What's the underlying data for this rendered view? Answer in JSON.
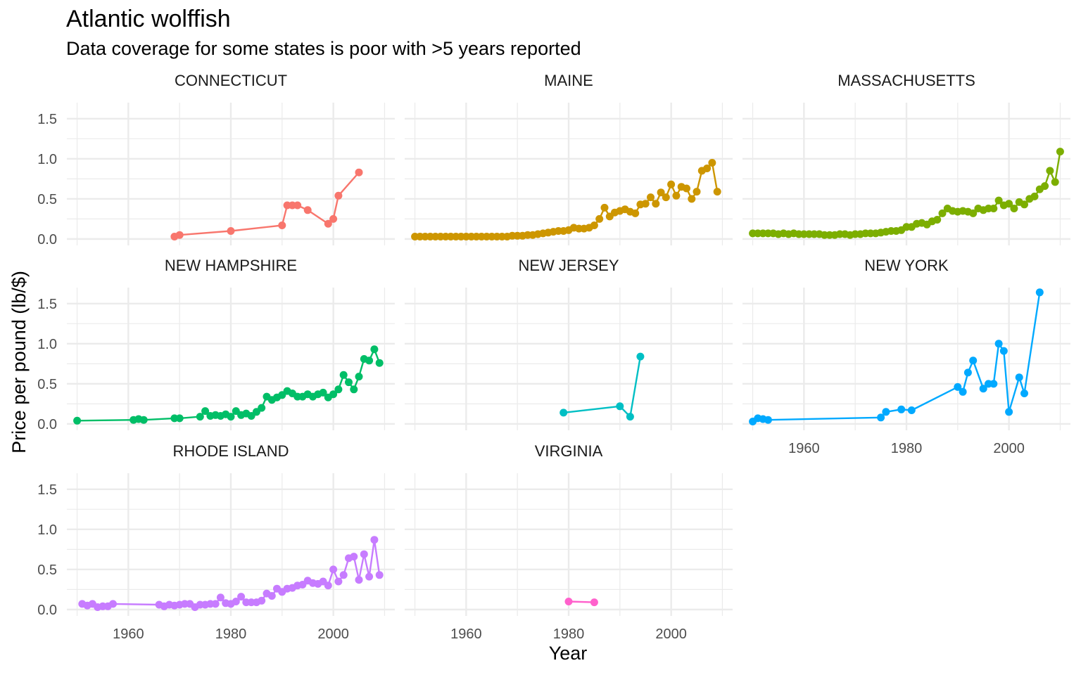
{
  "chart_data": {
    "type": "line",
    "title": "Atlantic wolffish",
    "subtitle": "Data coverage for some states is poor with >5 years reported",
    "xlabel": "Year",
    "ylabel": "Price per pound (lb/$)",
    "xlim": [
      1948,
      2012
    ],
    "ylim": [
      -0.08,
      1.7
    ],
    "x_ticks": [
      1960,
      1980,
      2000
    ],
    "y_ticks": [
      0.0,
      0.5,
      1.0,
      1.5
    ],
    "x_tick_labels": [
      "1960",
      "1980",
      "2000"
    ],
    "y_tick_labels": [
      "0.0",
      "0.5",
      "1.0",
      "1.5"
    ],
    "grid": true,
    "facet_layout": "3 columns x 3 rows, shared axes",
    "facets": [
      {
        "name": "CONNECTICUT",
        "color": "#F8766D",
        "x": [
          1969,
          1970,
          1980,
          1990,
          1991,
          1992,
          1993,
          1995,
          1999,
          2000,
          2001,
          2005
        ],
        "y": [
          0.03,
          0.05,
          0.1,
          0.17,
          0.42,
          0.42,
          0.42,
          0.36,
          0.19,
          0.25,
          0.54,
          0.83
        ]
      },
      {
        "name": "MAINE",
        "color": "#CD9600",
        "x": [
          1950,
          1951,
          1952,
          1953,
          1954,
          1955,
          1956,
          1957,
          1958,
          1959,
          1960,
          1961,
          1962,
          1963,
          1964,
          1965,
          1966,
          1967,
          1968,
          1969,
          1970,
          1971,
          1972,
          1973,
          1974,
          1975,
          1976,
          1977,
          1978,
          1979,
          1980,
          1981,
          1982,
          1983,
          1984,
          1985,
          1986,
          1987,
          1988,
          1989,
          1990,
          1991,
          1992,
          1993,
          1994,
          1995,
          1996,
          1997,
          1998,
          1999,
          2000,
          2001,
          2002,
          2003,
          2004,
          2005,
          2006,
          2007,
          2008,
          2009
        ],
        "y": [
          0.03,
          0.03,
          0.03,
          0.03,
          0.03,
          0.03,
          0.03,
          0.03,
          0.03,
          0.03,
          0.03,
          0.03,
          0.03,
          0.03,
          0.03,
          0.03,
          0.03,
          0.03,
          0.03,
          0.04,
          0.04,
          0.04,
          0.05,
          0.05,
          0.06,
          0.07,
          0.08,
          0.09,
          0.1,
          0.1,
          0.11,
          0.14,
          0.13,
          0.13,
          0.14,
          0.17,
          0.25,
          0.39,
          0.28,
          0.33,
          0.35,
          0.37,
          0.34,
          0.32,
          0.43,
          0.44,
          0.52,
          0.44,
          0.58,
          0.52,
          0.68,
          0.54,
          0.65,
          0.63,
          0.5,
          0.59,
          0.85,
          0.88,
          0.95,
          0.59
        ]
      },
      {
        "name": "MASSACHUSETTS",
        "color": "#7CAE00",
        "x": [
          1950,
          1951,
          1952,
          1953,
          1954,
          1955,
          1956,
          1957,
          1958,
          1959,
          1960,
          1961,
          1962,
          1963,
          1964,
          1965,
          1966,
          1967,
          1968,
          1969,
          1970,
          1971,
          1972,
          1973,
          1974,
          1975,
          1976,
          1977,
          1978,
          1979,
          1980,
          1981,
          1982,
          1983,
          1984,
          1985,
          1986,
          1987,
          1988,
          1989,
          1990,
          1991,
          1992,
          1993,
          1994,
          1995,
          1996,
          1997,
          1998,
          1999,
          2000,
          2001,
          2002,
          2003,
          2004,
          2005,
          2006,
          2007,
          2008,
          2009,
          2010
        ],
        "y": [
          0.07,
          0.07,
          0.07,
          0.07,
          0.07,
          0.06,
          0.07,
          0.06,
          0.07,
          0.06,
          0.06,
          0.06,
          0.06,
          0.06,
          0.05,
          0.05,
          0.05,
          0.06,
          0.06,
          0.05,
          0.06,
          0.06,
          0.07,
          0.07,
          0.07,
          0.08,
          0.09,
          0.1,
          0.1,
          0.11,
          0.15,
          0.15,
          0.19,
          0.2,
          0.18,
          0.22,
          0.24,
          0.32,
          0.38,
          0.35,
          0.34,
          0.35,
          0.34,
          0.32,
          0.38,
          0.36,
          0.38,
          0.38,
          0.48,
          0.42,
          0.44,
          0.38,
          0.46,
          0.43,
          0.5,
          0.53,
          0.62,
          0.66,
          0.85,
          0.71,
          1.09
        ]
      },
      {
        "name": "NEW HAMPSHIRE",
        "color": "#00BE67",
        "x": [
          1950,
          1961,
          1962,
          1963,
          1969,
          1970,
          1974,
          1975,
          1976,
          1977,
          1978,
          1979,
          1980,
          1981,
          1982,
          1983,
          1984,
          1985,
          1986,
          1987,
          1988,
          1989,
          1990,
          1991,
          1992,
          1993,
          1994,
          1995,
          1996,
          1997,
          1998,
          1999,
          2000,
          2001,
          2002,
          2003,
          2004,
          2005,
          2006,
          2007,
          2008,
          2009
        ],
        "y": [
          0.04,
          0.05,
          0.06,
          0.05,
          0.07,
          0.07,
          0.09,
          0.16,
          0.1,
          0.11,
          0.1,
          0.12,
          0.09,
          0.16,
          0.11,
          0.13,
          0.1,
          0.15,
          0.2,
          0.34,
          0.3,
          0.33,
          0.36,
          0.41,
          0.38,
          0.34,
          0.34,
          0.37,
          0.34,
          0.37,
          0.39,
          0.33,
          0.37,
          0.43,
          0.61,
          0.52,
          0.43,
          0.59,
          0.81,
          0.79,
          0.93,
          0.76
        ]
      },
      {
        "name": "NEW JERSEY",
        "color": "#00BFC4",
        "x": [
          1979,
          1990,
          1992,
          1994
        ],
        "y": [
          0.14,
          0.22,
          0.09,
          0.84
        ]
      },
      {
        "name": "NEW YORK",
        "color": "#00A9FF",
        "x": [
          1950,
          1951,
          1952,
          1953,
          1975,
          1976,
          1979,
          1981,
          1990,
          1991,
          1992,
          1993,
          1995,
          1996,
          1997,
          1998,
          1999,
          2000,
          2002,
          2003,
          2006
        ],
        "y": [
          0.03,
          0.07,
          0.06,
          0.05,
          0.08,
          0.15,
          0.18,
          0.17,
          0.46,
          0.4,
          0.64,
          0.79,
          0.44,
          0.5,
          0.5,
          1.0,
          0.91,
          0.15,
          0.58,
          0.38,
          1.64
        ]
      },
      {
        "name": "RHODE ISLAND",
        "color": "#C77CFF",
        "x": [
          1951,
          1952,
          1953,
          1954,
          1955,
          1956,
          1957,
          1966,
          1967,
          1968,
          1969,
          1970,
          1971,
          1972,
          1973,
          1974,
          1975,
          1976,
          1977,
          1978,
          1979,
          1980,
          1981,
          1982,
          1983,
          1984,
          1985,
          1986,
          1987,
          1988,
          1989,
          1990,
          1991,
          1992,
          1993,
          1994,
          1995,
          1996,
          1997,
          1998,
          1999,
          2000,
          2001,
          2002,
          2003,
          2004,
          2005,
          2006,
          2007,
          2008,
          2009
        ],
        "y": [
          0.07,
          0.05,
          0.07,
          0.03,
          0.04,
          0.04,
          0.07,
          0.06,
          0.04,
          0.06,
          0.05,
          0.06,
          0.07,
          0.07,
          0.03,
          0.06,
          0.06,
          0.07,
          0.07,
          0.15,
          0.08,
          0.07,
          0.1,
          0.16,
          0.09,
          0.09,
          0.09,
          0.11,
          0.2,
          0.17,
          0.26,
          0.22,
          0.26,
          0.27,
          0.3,
          0.31,
          0.36,
          0.33,
          0.32,
          0.35,
          0.3,
          0.5,
          0.35,
          0.43,
          0.64,
          0.66,
          0.37,
          0.69,
          0.41,
          0.87,
          0.43
        ]
      },
      {
        "name": "VIRGINIA",
        "color": "#FF61CC",
        "x": [
          1980,
          1985
        ],
        "y": [
          0.1,
          0.09
        ]
      }
    ]
  }
}
